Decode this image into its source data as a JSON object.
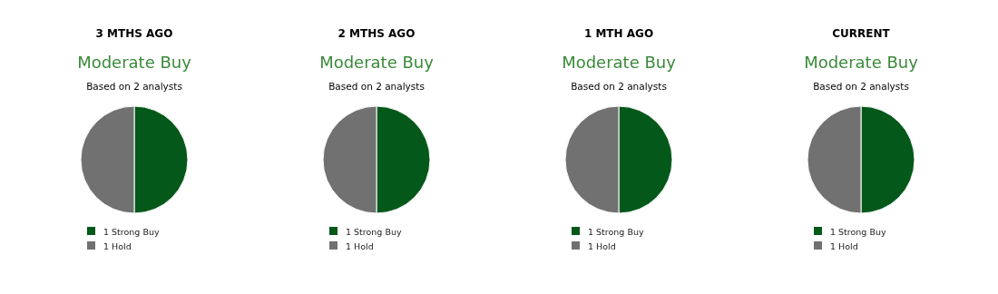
{
  "chart_data": [
    {
      "type": "pie",
      "title": "3 MTHS AGO",
      "subtitle": "Moderate Buy",
      "annotations": [
        "Based on 2 analysts"
      ],
      "categories": [
        "1 Strong Buy",
        "1 Hold"
      ],
      "values": [
        50,
        50
      ],
      "colors": [
        "#04581a",
        "#717171"
      ],
      "legend": "bottom"
    },
    {
      "type": "pie",
      "title": "2 MTHS AGO",
      "subtitle": "Moderate Buy",
      "annotations": [
        "Based on 2 analysts"
      ],
      "categories": [
        "1 Strong Buy",
        "1 Hold"
      ],
      "values": [
        50,
        50
      ],
      "colors": [
        "#04581a",
        "#717171"
      ],
      "legend": "bottom"
    },
    {
      "type": "pie",
      "title": "1 MTH AGO",
      "subtitle": "Moderate Buy",
      "annotations": [
        "Based on 2 analysts"
      ],
      "categories": [
        "1 Strong Buy",
        "1 Hold"
      ],
      "values": [
        50,
        50
      ],
      "colors": [
        "#04581a",
        "#717171"
      ],
      "legend": "bottom"
    },
    {
      "type": "pie",
      "title": "CURRENT",
      "subtitle": "Moderate Buy",
      "annotations": [
        "Based on 2 analysts"
      ],
      "categories": [
        "1 Strong Buy",
        "1 Hold"
      ],
      "values": [
        50,
        50
      ],
      "colors": [
        "#04581a",
        "#717171"
      ],
      "legend": "bottom"
    }
  ]
}
